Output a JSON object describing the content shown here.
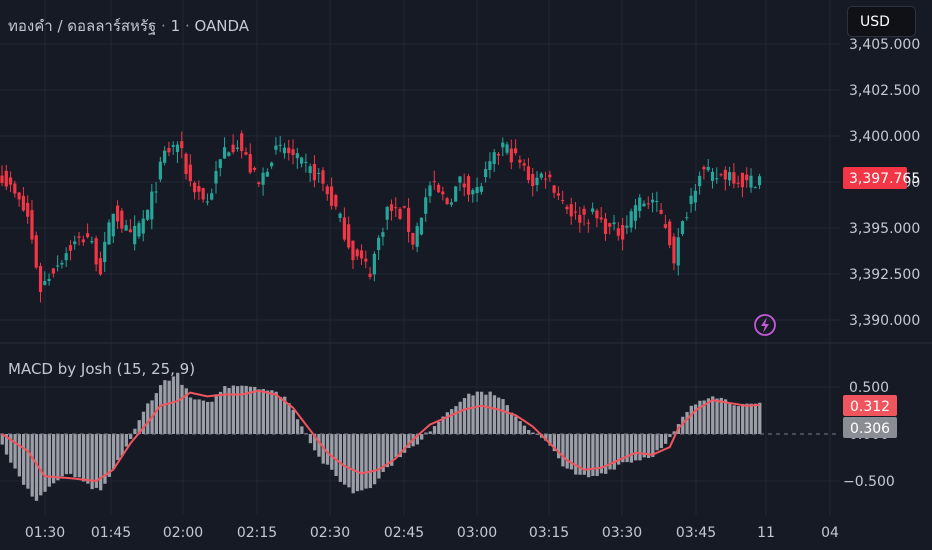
{
  "header": {
    "symbol": "ทองคำ / ดอลลาร์สหรัฐ",
    "sep1": "·",
    "interval": "1",
    "sep2": "·",
    "broker": "OANDA",
    "currency_button": "USD"
  },
  "colors": {
    "background": "#161a25",
    "grid": "#232733",
    "up": "#26a69a",
    "down": "#f23645",
    "macd_hist": "#9b9ea6",
    "signal_line": "#f0545c",
    "alert_icon": "#c35bd8"
  },
  "indicator": {
    "title": "MACD by Josh (15, 25, 9)"
  },
  "icons": {
    "alert": "lightning-alert-icon"
  },
  "chart_data": [
    {
      "type": "candlestick",
      "title": "ทองคำ / ดอลลาร์สหรัฐ · 1 · OANDA",
      "x_ticks": [
        "01:30",
        "01:45",
        "02:00",
        "02:15",
        "02:30",
        "02:45",
        "03:00",
        "03:15",
        "03:30",
        "03:45",
        "11",
        "04"
      ],
      "y_ticks": [
        "3,390.000",
        "3,392.500",
        "3,395.000",
        "3,397.500",
        "3,400.000",
        "3,402.500",
        "3,405.000"
      ],
      "ylim": [
        3389.0,
        3406.0
      ],
      "last_price": "3,397.765",
      "close_path": [
        [
          0,
          3397.9
        ],
        [
          6,
          3395.6
        ],
        [
          9,
          3391.7
        ],
        [
          12,
          3392.8
        ],
        [
          16,
          3394.0
        ],
        [
          20,
          3394.6
        ],
        [
          23,
          3392.8
        ],
        [
          26,
          3396.0
        ],
        [
          30,
          3394.4
        ],
        [
          34,
          3395.8
        ],
        [
          38,
          3399.0
        ],
        [
          41,
          3399.6
        ],
        [
          44,
          3397.5
        ],
        [
          48,
          3396.4
        ],
        [
          52,
          3399.3
        ],
        [
          55,
          3399.7
        ],
        [
          60,
          3397.3
        ],
        [
          63,
          3399.0
        ],
        [
          66,
          3399.3
        ],
        [
          70,
          3398.4
        ],
        [
          74,
          3397.8
        ],
        [
          78,
          3396.0
        ],
        [
          82,
          3393.6
        ],
        [
          86,
          3392.7
        ],
        [
          90,
          3396.0
        ],
        [
          94,
          3395.7
        ],
        [
          96,
          3394.3
        ],
        [
          100,
          3397.3
        ],
        [
          104,
          3396.4
        ],
        [
          107,
          3397.5
        ],
        [
          111,
          3397.0
        ],
        [
          114,
          3398.3
        ],
        [
          117,
          3399.5
        ],
        [
          121,
          3398.5
        ],
        [
          124,
          3397.5
        ],
        [
          127,
          3398.0
        ],
        [
          131,
          3396.5
        ],
        [
          134,
          3395.6
        ],
        [
          138,
          3395.7
        ],
        [
          142,
          3394.9
        ],
        [
          145,
          3394.8
        ],
        [
          148,
          3396.3
        ],
        [
          152,
          3396.5
        ],
        [
          155,
          3395.2
        ],
        [
          157,
          3393.4
        ],
        [
          160,
          3396.0
        ],
        [
          163,
          3398.2
        ],
        [
          166,
          3397.7
        ],
        [
          170,
          3398.0
        ],
        [
          174,
          3397.4
        ],
        [
          177,
          3397.8
        ]
      ],
      "wick_extremes": {
        "min": 3390.6,
        "max": 3400.3
      },
      "annotations": [
        "Lightning alert marker near 03:57"
      ]
    },
    {
      "type": "histogram_and_line",
      "title": "MACD by Josh (15, 25, 9)",
      "y_ticks": [
        "0.500",
        "-0.500"
      ],
      "zero_line_value": "0.000",
      "ylim": [
        -0.75,
        0.75
      ],
      "last_values": {
        "signal": "0.312",
        "histogram": "0.306"
      },
      "histogram_path": [
        [
          0,
          -0.12
        ],
        [
          5,
          -0.55
        ],
        [
          8,
          -0.7
        ],
        [
          12,
          -0.52
        ],
        [
          16,
          -0.42
        ],
        [
          20,
          -0.55
        ],
        [
          23,
          -0.62
        ],
        [
          26,
          -0.38
        ],
        [
          30,
          -0.05
        ],
        [
          34,
          0.32
        ],
        [
          38,
          0.57
        ],
        [
          41,
          0.63
        ],
        [
          44,
          0.38
        ],
        [
          48,
          0.32
        ],
        [
          52,
          0.5
        ],
        [
          55,
          0.53
        ],
        [
          60,
          0.5
        ],
        [
          63,
          0.45
        ],
        [
          66,
          0.4
        ],
        [
          70,
          0.1
        ],
        [
          74,
          -0.25
        ],
        [
          78,
          -0.45
        ],
        [
          82,
          -0.62
        ],
        [
          86,
          -0.56
        ],
        [
          90,
          -0.36
        ],
        [
          94,
          -0.18
        ],
        [
          97,
          -0.12
        ],
        [
          100,
          0.05
        ],
        [
          104,
          0.24
        ],
        [
          107,
          0.36
        ],
        [
          111,
          0.45
        ],
        [
          114,
          0.43
        ],
        [
          117,
          0.35
        ],
        [
          121,
          0.14
        ],
        [
          124,
          0.02
        ],
        [
          127,
          -0.08
        ],
        [
          131,
          -0.32
        ],
        [
          134,
          -0.44
        ],
        [
          138,
          -0.46
        ],
        [
          142,
          -0.38
        ],
        [
          145,
          -0.3
        ],
        [
          148,
          -0.28
        ],
        [
          152,
          -0.22
        ],
        [
          155,
          -0.12
        ],
        [
          157,
          0.02
        ],
        [
          160,
          0.24
        ],
        [
          163,
          0.36
        ],
        [
          166,
          0.42
        ],
        [
          170,
          0.34
        ],
        [
          174,
          0.3
        ],
        [
          177,
          0.31
        ]
      ],
      "signal_path": [
        [
          0,
          0.0
        ],
        [
          6,
          -0.18
        ],
        [
          10,
          -0.45
        ],
        [
          16,
          -0.47
        ],
        [
          22,
          -0.5
        ],
        [
          26,
          -0.38
        ],
        [
          30,
          -0.1
        ],
        [
          34,
          0.12
        ],
        [
          37,
          0.3
        ],
        [
          41,
          0.35
        ],
        [
          44,
          0.44
        ],
        [
          48,
          0.4
        ],
        [
          52,
          0.42
        ],
        [
          56,
          0.42
        ],
        [
          60,
          0.46
        ],
        [
          64,
          0.42
        ],
        [
          68,
          0.28
        ],
        [
          72,
          0.04
        ],
        [
          76,
          -0.2
        ],
        [
          80,
          -0.34
        ],
        [
          84,
          -0.42
        ],
        [
          88,
          -0.38
        ],
        [
          92,
          -0.26
        ],
        [
          96,
          -0.06
        ],
        [
          100,
          0.1
        ],
        [
          104,
          0.18
        ],
        [
          108,
          0.26
        ],
        [
          112,
          0.3
        ],
        [
          116,
          0.26
        ],
        [
          120,
          0.2
        ],
        [
          124,
          0.08
        ],
        [
          128,
          -0.1
        ],
        [
          132,
          -0.28
        ],
        [
          136,
          -0.38
        ],
        [
          140,
          -0.36
        ],
        [
          144,
          -0.28
        ],
        [
          148,
          -0.2
        ],
        [
          152,
          -0.22
        ],
        [
          156,
          -0.14
        ],
        [
          158,
          0.06
        ],
        [
          162,
          0.25
        ],
        [
          166,
          0.36
        ],
        [
          170,
          0.33
        ],
        [
          174,
          0.3
        ],
        [
          177,
          0.31
        ]
      ]
    }
  ]
}
